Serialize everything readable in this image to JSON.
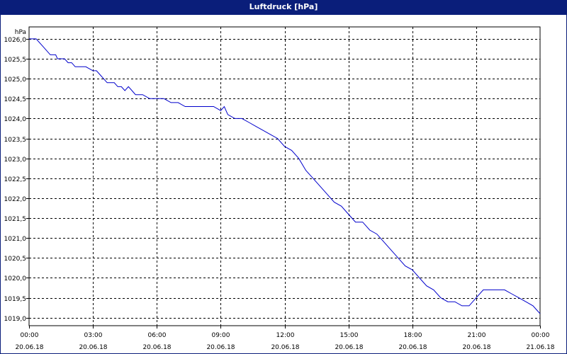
{
  "window": {
    "title": "Luftdruck [hPa]"
  },
  "colors": {
    "title_bar": "#0a1e7a",
    "series": "#0000cc",
    "grid": "#000000"
  },
  "chart_data": {
    "type": "line",
    "title": "Luftdruck [hPa]",
    "ylabel": "hPa",
    "xlabel": "",
    "grid": true,
    "xlim": [
      "2018-06-20 00:00",
      "2018-06-21 00:00"
    ],
    "ylim": [
      1018.8,
      1026.3
    ],
    "yticks": [
      "1019,0",
      "1019,5",
      "1020,0",
      "1020,5",
      "1021,0",
      "1021,5",
      "1022,0",
      "1022,5",
      "1023,0",
      "1023,5",
      "1024,0",
      "1024,5",
      "1025,0",
      "1025,5",
      "1026,0"
    ],
    "ytick_values": [
      1019.0,
      1019.5,
      1020.0,
      1020.5,
      1021.0,
      1021.5,
      1022.0,
      1022.5,
      1023.0,
      1023.5,
      1024.0,
      1024.5,
      1025.0,
      1025.5,
      1026.0
    ],
    "xticks": [
      {
        "time": "00:00",
        "date": "20.06.18"
      },
      {
        "time": "03:00",
        "date": "20.06.18"
      },
      {
        "time": "06:00",
        "date": "20.06.18"
      },
      {
        "time": "09:00",
        "date": "20.06.18"
      },
      {
        "time": "12:00",
        "date": "20.06.18"
      },
      {
        "time": "15:00",
        "date": "20.06.18"
      },
      {
        "time": "18:00",
        "date": "20.06.18"
      },
      {
        "time": "21:00",
        "date": "20.06.18"
      },
      {
        "time": "00:00",
        "date": "21.06.18"
      }
    ],
    "series": [
      {
        "x": [
          "00:00",
          "00:20",
          "00:40",
          "01:00",
          "01:15",
          "01:20",
          "01:40",
          "01:50",
          "02:00",
          "02:10",
          "02:20",
          "02:30",
          "02:40",
          "03:00",
          "03:10",
          "03:20",
          "03:40",
          "04:00",
          "04:10",
          "04:20",
          "04:30",
          "04:40",
          "04:50",
          "05:00",
          "05:10",
          "05:20",
          "05:40",
          "06:00",
          "06:20",
          "06:40",
          "07:00",
          "07:20",
          "07:40",
          "08:00",
          "08:20",
          "08:40",
          "09:00",
          "09:10",
          "09:20",
          "09:40",
          "10:00",
          "10:20",
          "10:40",
          "11:00",
          "11:20",
          "11:40",
          "12:00",
          "12:20",
          "12:40",
          "13:00",
          "13:20",
          "13:40",
          "14:00",
          "14:20",
          "14:40",
          "15:00",
          "15:20",
          "15:40",
          "16:00",
          "16:20",
          "16:40",
          "17:00",
          "17:20",
          "17:40",
          "18:00",
          "18:20",
          "18:40",
          "19:00",
          "19:20",
          "19:40",
          "20:00",
          "20:20",
          "20:40",
          "21:00",
          "21:20",
          "21:40",
          "22:00",
          "22:20",
          "22:40",
          "23:00",
          "23:20",
          "23:40",
          "23:50",
          "24:00"
        ],
        "y": [
          1026.0,
          1026.0,
          1025.8,
          1025.6,
          1025.6,
          1025.5,
          1025.5,
          1025.4,
          1025.4,
          1025.3,
          1025.3,
          1025.3,
          1025.3,
          1025.2,
          1025.2,
          1025.1,
          1024.9,
          1024.9,
          1024.8,
          1024.8,
          1024.7,
          1024.8,
          1024.7,
          1024.6,
          1024.6,
          1024.6,
          1024.5,
          1024.5,
          1024.5,
          1024.4,
          1024.4,
          1024.3,
          1024.3,
          1024.3,
          1024.3,
          1024.3,
          1024.2,
          1024.3,
          1024.1,
          1024.0,
          1024.0,
          1023.9,
          1023.8,
          1023.7,
          1023.6,
          1023.5,
          1023.3,
          1023.2,
          1023.0,
          1022.7,
          1022.5,
          1022.3,
          1022.1,
          1021.9,
          1021.8,
          1021.6,
          1021.4,
          1021.4,
          1021.2,
          1021.1,
          1020.9,
          1020.7,
          1020.5,
          1020.3,
          1020.2,
          1020.0,
          1019.8,
          1019.7,
          1019.5,
          1019.4,
          1019.4,
          1019.3,
          1019.3,
          1019.5,
          1019.7,
          1019.7,
          1019.7,
          1019.7,
          1019.6,
          1019.5,
          1019.4,
          1019.3,
          1019.2,
          1019.1
        ]
      }
    ]
  }
}
